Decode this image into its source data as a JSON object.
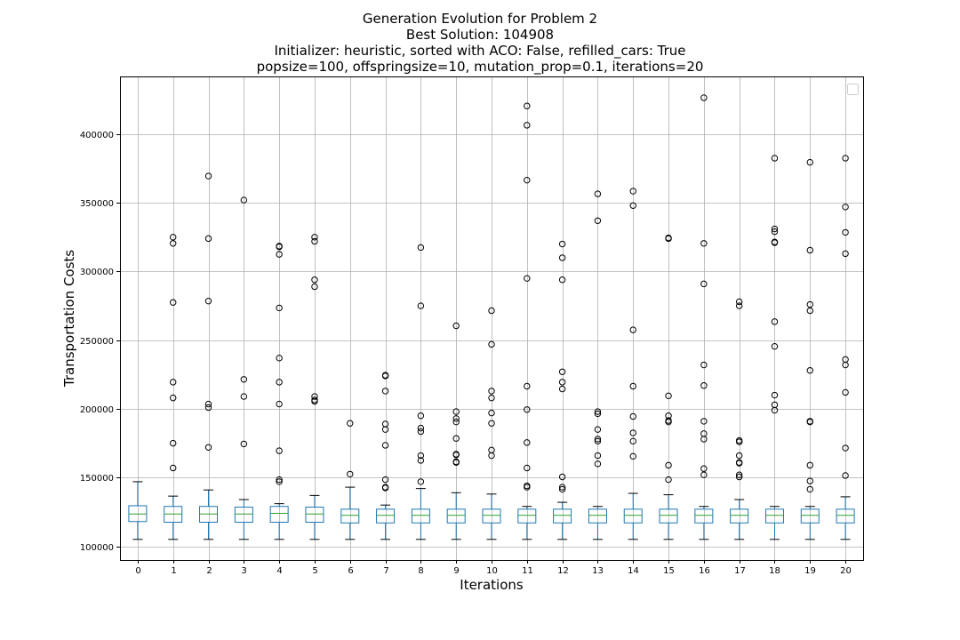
{
  "chart_data": {
    "type": "box",
    "title_lines": [
      "Generation Evolution for Problem 2",
      "Best Solution: 104908",
      "Initializer: heuristic, sorted with ACO: False, refilled_cars: True",
      "popsize=100, offspringsize=10, mutation_prop=0.1, iterations=20"
    ],
    "xlabel": "Iterations",
    "ylabel": "Transportation Costs",
    "ylim": [
      90000,
      442000
    ],
    "yticks": [
      100000,
      150000,
      200000,
      250000,
      300000,
      350000,
      400000
    ],
    "ytick_labels": [
      "100000",
      "150000",
      "200000",
      "250000",
      "300000",
      "350000",
      "400000"
    ],
    "grid": true,
    "legend": "top-right (empty)",
    "colors": {
      "box": "#1f77b4",
      "median": "#2ca02c",
      "whisker": "#000000",
      "grid": "#b0b0b0"
    },
    "categories": [
      "0",
      "1",
      "2",
      "3",
      "4",
      "5",
      "6",
      "7",
      "8",
      "9",
      "10",
      "11",
      "12",
      "13",
      "14",
      "15",
      "16",
      "17",
      "18",
      "19",
      "20"
    ],
    "boxes": [
      {
        "whislo": 105000,
        "q1": 118000,
        "med": 123500,
        "q3": 129500,
        "whishi": 147000,
        "fliers": []
      },
      {
        "whislo": 105000,
        "q1": 117500,
        "med": 123500,
        "q3": 129000,
        "whishi": 136500,
        "fliers": [
          157000,
          175000,
          208000,
          219500,
          277500,
          320500,
          325000
        ]
      },
      {
        "whislo": 105000,
        "q1": 117500,
        "med": 123500,
        "q3": 129000,
        "whishi": 141000,
        "fliers": [
          172000,
          201000,
          203500,
          278500,
          324000,
          369500
        ]
      },
      {
        "whislo": 105000,
        "q1": 117500,
        "med": 123500,
        "q3": 128500,
        "whishi": 134000,
        "fliers": [
          174500,
          209000,
          221500,
          352000
        ]
      },
      {
        "whislo": 105000,
        "q1": 117500,
        "med": 124000,
        "q3": 129000,
        "whishi": 131000,
        "fliers": [
          147000,
          148500,
          169500,
          203500,
          219500,
          237000,
          273500,
          312500,
          318000,
          318500
        ]
      },
      {
        "whislo": 105000,
        "q1": 117500,
        "med": 123500,
        "q3": 128500,
        "whishi": 137000,
        "fliers": [
          205500,
          206500,
          209000,
          289000,
          294000,
          322000,
          325000
        ]
      },
      {
        "whislo": 105000,
        "q1": 117000,
        "med": 122500,
        "q3": 127000,
        "whishi": 143000,
        "fliers": [
          152500,
          189500
        ]
      },
      {
        "whislo": 105000,
        "q1": 117000,
        "med": 122500,
        "q3": 127000,
        "whishi": 130000,
        "fliers": [
          142500,
          143000,
          148500,
          173500,
          185000,
          189000,
          213000,
          224000,
          224500
        ]
      },
      {
        "whislo": 105000,
        "q1": 117000,
        "med": 122500,
        "q3": 127000,
        "whishi": 142000,
        "fliers": [
          147000,
          162500,
          166000,
          183500,
          186000,
          195000,
          275000,
          317500
        ]
      },
      {
        "whislo": 105000,
        "q1": 117000,
        "med": 122500,
        "q3": 127000,
        "whishi": 139000,
        "fliers": [
          161000,
          161500,
          166500,
          167000,
          178500,
          190500,
          193000,
          198000,
          260500
        ]
      },
      {
        "whislo": 105000,
        "q1": 117000,
        "med": 122500,
        "q3": 127000,
        "whishi": 138000,
        "fliers": [
          166000,
          170000,
          189500,
          197000,
          208000,
          213000,
          247000,
          271500
        ]
      },
      {
        "whislo": 105000,
        "q1": 117000,
        "med": 122500,
        "q3": 127000,
        "whishi": 129000,
        "fliers": [
          143000,
          144000,
          157000,
          175500,
          199500,
          216500,
          295000,
          366500,
          406500,
          420500
        ]
      },
      {
        "whislo": 105000,
        "q1": 117000,
        "med": 122500,
        "q3": 127000,
        "whishi": 132000,
        "fliers": [
          141500,
          143000,
          150500,
          214500,
          219500,
          227000,
          294000,
          310000,
          320000
        ]
      },
      {
        "whislo": 105000,
        "q1": 117000,
        "med": 122500,
        "q3": 127000,
        "whishi": 129000,
        "fliers": [
          160000,
          166000,
          176500,
          178000,
          185000,
          196500,
          198000,
          337000,
          356500
        ]
      },
      {
        "whislo": 105000,
        "q1": 117000,
        "med": 122500,
        "q3": 127000,
        "whishi": 138500,
        "fliers": [
          165500,
          176500,
          182500,
          194500,
          216500,
          257500,
          348000,
          358500
        ]
      },
      {
        "whislo": 105000,
        "q1": 117000,
        "med": 122500,
        "q3": 127000,
        "whishi": 137500,
        "fliers": [
          148500,
          159000,
          190500,
          191500,
          195000,
          209500,
          324000,
          324500
        ]
      },
      {
        "whislo": 105000,
        "q1": 117000,
        "med": 122500,
        "q3": 127000,
        "whishi": 129000,
        "fliers": [
          152000,
          156500,
          178000,
          182000,
          191000,
          217000,
          232000,
          291000,
          320500,
          426500
        ]
      },
      {
        "whislo": 105000,
        "q1": 117000,
        "med": 122500,
        "q3": 127000,
        "whishi": 134000,
        "fliers": [
          150500,
          152000,
          160500,
          161000,
          166000,
          176000,
          177000,
          275000,
          278000
        ]
      },
      {
        "whislo": 105000,
        "q1": 117000,
        "med": 122500,
        "q3": 127000,
        "whishi": 129000,
        "fliers": [
          199000,
          203000,
          210000,
          245500,
          263500,
          321000,
          321500,
          329000,
          331000,
          382500
        ]
      },
      {
        "whislo": 105000,
        "q1": 117000,
        "med": 122500,
        "q3": 127000,
        "whishi": 129000,
        "fliers": [
          141500,
          147500,
          159000,
          190500,
          191000,
          228000,
          271500,
          276000,
          315500,
          379500
        ]
      },
      {
        "whislo": 105000,
        "q1": 117000,
        "med": 122500,
        "q3": 127000,
        "whishi": 136000,
        "fliers": [
          151500,
          171500,
          212000,
          232000,
          236000,
          313000,
          328500,
          347000,
          382500
        ]
      }
    ]
  }
}
